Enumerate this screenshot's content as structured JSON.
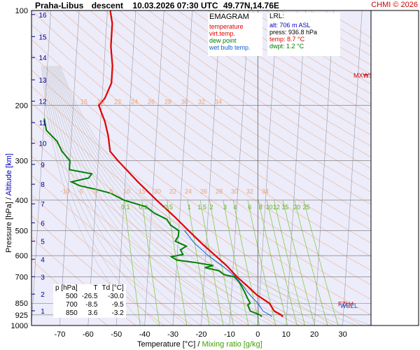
{
  "header": {
    "station": "Praha-Libus",
    "mode": "descent",
    "datetime": "10.03.2026 07:30 UTC",
    "coords": "49.77N,14.76E",
    "credit": "CHMI © 2026"
  },
  "legend": {
    "title": "EMAGRAM",
    "items": [
      {
        "label": "temperature",
        "color": "#e00000"
      },
      {
        "label": "virt.temp.",
        "color": "#e00000"
      },
      {
        "label": "dew point",
        "color": "#008000"
      },
      {
        "label": "wet bulb temp.",
        "color": "#1060d0"
      }
    ]
  },
  "lrl": {
    "title": "LRL:",
    "alt": "alt: 706 m ASL",
    "press": "press: 936.8 hPa",
    "temp": "temp: 8.7 °C",
    "dwpt": "dwpt: 1.2 °C"
  },
  "table": {
    "headers": [
      "p [hPa]",
      "T",
      "Td [°C]"
    ],
    "rows": [
      [
        "500",
        "-26.5",
        "-30.0"
      ],
      [
        "700",
        "-8.5",
        "-9.5"
      ],
      [
        "850",
        "3.6",
        "-3.2"
      ]
    ]
  },
  "axes": {
    "xlabel": "Temperature [°C]",
    "xlabel_sep": "/",
    "xlabel2": "Mixing ratio [g/kg]",
    "ylabel": "Pressure [hPa]",
    "ylabel_sep": "/",
    "ylabel2": "Altitude [km]"
  },
  "colors": {
    "bg": "#ececfa",
    "temperature": "#e00000",
    "dewpoint": "#008000",
    "wetbulb": "#1060d0",
    "dry_adiabat": "#f0b090",
    "moist_adiabat": "#a0a0a0",
    "mixing_ratio": "#88cc44",
    "altitude": "#000090",
    "credit": "#d00000"
  },
  "chart_data": {
    "type": "line",
    "x_scale": "temperature",
    "y_scale": "log-pressure",
    "xlim": [
      -80,
      40
    ],
    "ylim": [
      1000,
      100
    ],
    "x_ticks": [
      -70,
      -60,
      -50,
      -40,
      -30,
      -20,
      -10,
      0,
      10,
      20,
      30
    ],
    "x_tick_labels": [
      "-70",
      "-60",
      "-50",
      "-40",
      "-30",
      "-20",
      "-10",
      "0",
      "10",
      "20",
      "30"
    ],
    "y_ticks": [
      100,
      200,
      300,
      400,
      500,
      600,
      700,
      850,
      925,
      1000
    ],
    "y_tick_labels": [
      "100",
      "200",
      "300",
      "400",
      "500",
      "600",
      "700",
      "850",
      "925",
      "1000"
    ],
    "altitude_km": [
      1,
      2,
      3,
      4,
      5,
      6,
      7,
      8,
      9,
      10,
      11,
      12,
      13,
      14,
      15,
      16
    ],
    "altitude_pressure": [
      898,
      795,
      700,
      616,
      540,
      472,
      411,
      356,
      308,
      264,
      227,
      194,
      166,
      141,
      121,
      103
    ],
    "altitude_labels": [
      "1",
      "2",
      "3",
      "4",
      "5",
      "6",
      "7",
      "8",
      "9",
      "10",
      "11",
      "12",
      "13",
      "14",
      "15",
      "16"
    ],
    "grid": true,
    "temperature": [
      [
        937,
        8.7
      ],
      [
        925,
        8
      ],
      [
        900,
        5.5
      ],
      [
        850,
        3.6
      ],
      [
        800,
        -1
      ],
      [
        750,
        -4.5
      ],
      [
        700,
        -8.5
      ],
      [
        650,
        -12
      ],
      [
        600,
        -16.5
      ],
      [
        550,
        -21.5
      ],
      [
        500,
        -26.5
      ],
      [
        450,
        -32
      ],
      [
        400,
        -38.5
      ],
      [
        350,
        -45.5
      ],
      [
        300,
        -53
      ],
      [
        280,
        -56
      ],
      [
        250,
        -57
      ],
      [
        225,
        -58.5
      ],
      [
        210,
        -60
      ],
      [
        200,
        -61
      ],
      [
        190,
        -59
      ],
      [
        170,
        -57
      ],
      [
        150,
        -57
      ],
      [
        130,
        -58
      ],
      [
        110,
        -58
      ],
      [
        100,
        -59
      ]
    ],
    "dewpoint": [
      [
        937,
        1.2
      ],
      [
        925,
        0.5
      ],
      [
        900,
        -3
      ],
      [
        880,
        -3.5
      ],
      [
        860,
        -4
      ],
      [
        850,
        -3.2
      ],
      [
        820,
        -4.2
      ],
      [
        780,
        -5.5
      ],
      [
        740,
        -7
      ],
      [
        720,
        -8
      ],
      [
        700,
        -9.5
      ],
      [
        690,
        -13
      ],
      [
        670,
        -15
      ],
      [
        655,
        -20
      ],
      [
        645,
        -17
      ],
      [
        630,
        -24
      ],
      [
        620,
        -30
      ],
      [
        605,
        -32
      ],
      [
        595,
        -28
      ],
      [
        575,
        -29
      ],
      [
        560,
        -27
      ],
      [
        540,
        -31
      ],
      [
        520,
        -30
      ],
      [
        500,
        -30
      ],
      [
        480,
        -33
      ],
      [
        460,
        -34.5
      ],
      [
        440,
        -39
      ],
      [
        420,
        -42
      ],
      [
        400,
        -50
      ],
      [
        380,
        -55
      ],
      [
        370,
        -60
      ],
      [
        360,
        -66
      ],
      [
        350,
        -69
      ],
      [
        340,
        -63
      ],
      [
        330,
        -62
      ],
      [
        320,
        -70
      ],
      [
        300,
        -70
      ],
      [
        280,
        -73
      ],
      [
        260,
        -75
      ],
      [
        240,
        -79
      ],
      [
        220,
        -80
      ]
    ],
    "wetbulb": [
      [
        937,
        4.8
      ],
      [
        925,
        4
      ],
      [
        900,
        1.5
      ],
      [
        850,
        -0.5
      ],
      [
        800,
        -3.5
      ],
      [
        750,
        -6
      ],
      [
        700,
        -9
      ],
      [
        650,
        -13.5
      ],
      [
        600,
        -19
      ],
      [
        550,
        -24
      ],
      [
        500,
        -28
      ]
    ],
    "iso_labels_upper": {
      "pressure": 200,
      "values": [
        "15",
        "20",
        "22",
        "24",
        "26",
        "28",
        "30",
        "32",
        "34"
      ]
    },
    "iso_labels_lower": {
      "pressure": 385,
      "values": [
        "-10",
        "-5",
        "0",
        "5",
        "10",
        "15",
        "20",
        "22",
        "24",
        "26",
        "28",
        "30",
        "32",
        "34"
      ]
    },
    "mixing_ratio_labels": [
      "0.1",
      "0.2",
      "0.5",
      "1",
      "1.5",
      "2",
      "3",
      "4",
      "6",
      "8",
      "10",
      "12",
      "15",
      "20",
      "25"
    ],
    "level_markers": [
      "MXWS",
      "FZLV",
      "WBZL"
    ]
  }
}
